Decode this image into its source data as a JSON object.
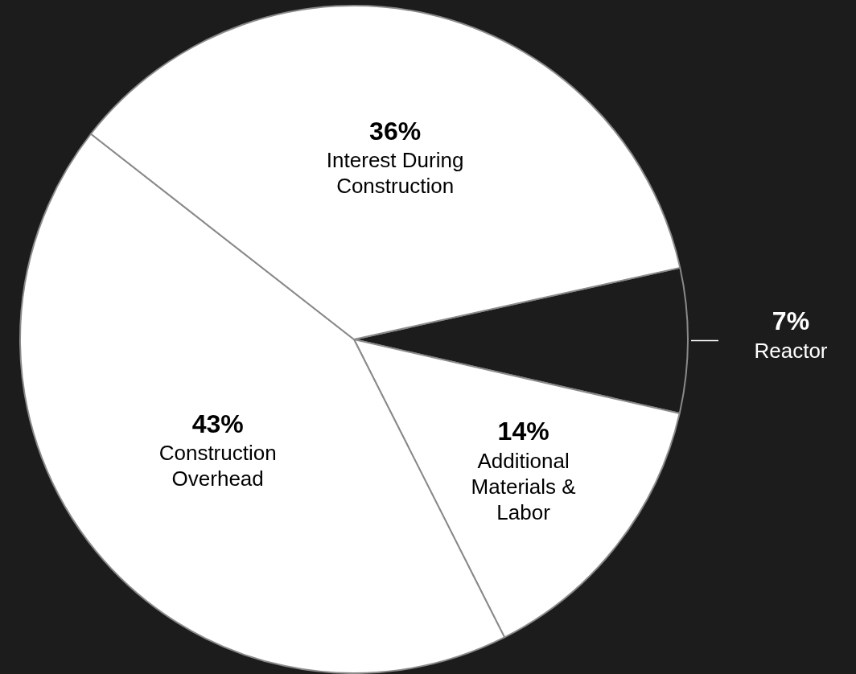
{
  "chart_data": {
    "type": "pie",
    "categories": [
      "Reactor",
      "Additional Materials & Labor",
      "Construction Overhead",
      "Interest During Construction"
    ],
    "values": [
      7,
      14,
      43,
      36
    ],
    "value_labels": [
      "7%",
      "14%",
      "43%",
      "36%"
    ],
    "colors": [
      "#1c1c1c",
      "#ffffff",
      "#ffffff",
      "#ffffff"
    ]
  }
}
